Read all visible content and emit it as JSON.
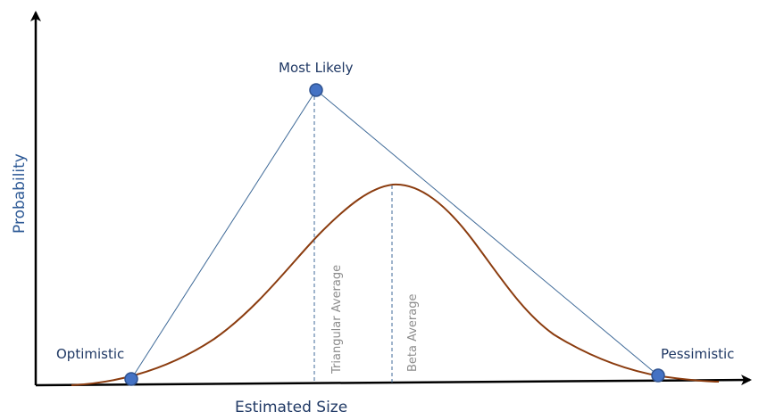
{
  "diagram": {
    "labels": {
      "most_likely": "Most Likely",
      "optimistic": "Optimistic",
      "pessimistic": "Pessimistic",
      "triangular_average": "Triangular Average",
      "beta_average": "Beta Average"
    },
    "axes": {
      "x_label": "Estimated Size",
      "y_label": "Probability"
    },
    "colors": {
      "axis": "#000000",
      "triangle_line": "#3f6a98",
      "beta_curve": "#8b3c0f",
      "point_fill": "#4472c4",
      "point_stroke": "#2f528f",
      "dashed_line": "#3f6a98",
      "label_text": "#1f3864",
      "vertical_label_text": "#8c8c8c"
    }
  }
}
